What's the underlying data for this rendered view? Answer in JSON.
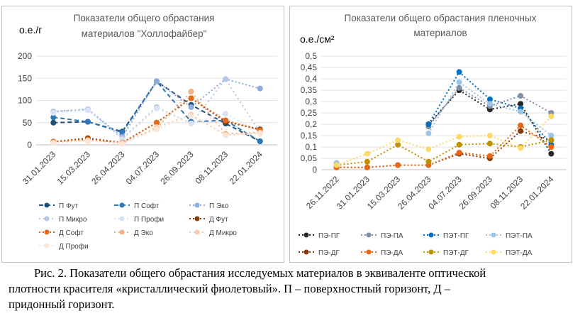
{
  "charts": [
    {
      "id": "left",
      "title": [
        "Показатели общего обрастания",
        "материалов \"Холлофайбер\""
      ],
      "ylabel": "о.е./г",
      "ylim": [
        0,
        200
      ],
      "yticks": [
        "0",
        "50",
        "100",
        "150",
        "200"
      ],
      "categories": [
        "31.01.2023",
        "15.03.2023",
        "26.04.2023",
        "04.07.2023",
        "26.09.2023",
        "08.11.2023",
        "22.01.2024"
      ],
      "series": [
        {
          "name": "П Фут",
          "color": "#1f4e79",
          "dash": "6,4",
          "values": [
            50,
            52,
            30,
            143,
            90,
            48,
            8
          ]
        },
        {
          "name": "П Софт",
          "color": "#2e75b6",
          "dash": "6,4",
          "values": [
            62,
            52,
            28,
            143,
            52,
            55,
            8
          ]
        },
        {
          "name": "П Эко",
          "color": "#8faadc",
          "dash": "2,3",
          "values": [
            75,
            80,
            18,
            143,
            85,
            148,
            127
          ]
        },
        {
          "name": "П Микро",
          "color": "#b4c7e7",
          "dash": "2,4",
          "values": [
            75,
            80,
            15,
            85,
            48,
            148,
            28
          ]
        },
        {
          "name": "П Профи",
          "color": "#dae3f3",
          "dash": "2,4",
          "values": [
            72,
            78,
            12,
            82,
            48,
            70,
            28
          ]
        },
        {
          "name": "Д Фут",
          "color": "#843c0c",
          "dash": "2,3",
          "values": [
            7,
            15,
            5,
            50,
            105,
            52,
            35
          ]
        },
        {
          "name": "Д Софт",
          "color": "#e56717",
          "dash": "2,3",
          "values": [
            7,
            12,
            5,
            50,
            105,
            55,
            33
          ]
        },
        {
          "name": "Д Эко",
          "color": "#f4b183",
          "dash": "2,4",
          "values": [
            5,
            10,
            5,
            38,
            120,
            25,
            28
          ]
        },
        {
          "name": "Д Микро",
          "color": "#f8cbad",
          "dash": "2,4",
          "values": [
            5,
            10,
            3,
            40,
            68,
            22,
            27
          ]
        },
        {
          "name": "Д Профи",
          "color": "#fbe5d6",
          "dash": "2,4",
          "values": [
            4,
            8,
            2,
            35,
            65,
            22,
            25
          ]
        }
      ]
    },
    {
      "id": "right",
      "title": [
        "Показатели общего обрастания пленочных",
        "материалов"
      ],
      "ylabel": "о.е./см²",
      "ylim": [
        0,
        0.5
      ],
      "yticks": [
        "0",
        "0,05",
        "0,1",
        "0,15",
        "0,2",
        "0,25",
        "0,3",
        "0,35",
        "0,4",
        "0,45",
        "0,5"
      ],
      "categories": [
        "26.11.2022",
        "31.01.2023",
        "15.03.2023",
        "26.04.2023",
        "04.07.2023",
        "26.09.2023",
        "08.11.2023",
        "22.01.2024"
      ],
      "series": [
        {
          "name": "ПЭ-ПГ",
          "color": "#262626",
          "dash": "2,3",
          "values": [
            null,
            null,
            null,
            0.2,
            0.35,
            0.265,
            0.29,
            0.07
          ]
        },
        {
          "name": "ПЭ-ПА",
          "color": "#7f8fa6",
          "dash": "2,3",
          "values": [
            null,
            null,
            null,
            0.19,
            0.36,
            0.28,
            0.325,
            0.25
          ]
        },
        {
          "name": "ПЭТ-ПГ",
          "color": "#0070c0",
          "dash": "2,3",
          "values": [
            null,
            null,
            null,
            0.2,
            0.43,
            0.31,
            0.27,
            0.11
          ]
        },
        {
          "name": "ПЭТ-ПА",
          "color": "#9dc3e6",
          "dash": "2,3",
          "values": [
            0.03,
            null,
            null,
            0.16,
            0.385,
            0.29,
            0.255,
            0.15
          ]
        },
        {
          "name": "ПЭ-ДГ",
          "color": "#843c0c",
          "dash": "2,3",
          "values": [
            0.01,
            0.01,
            0.02,
            0.02,
            0.07,
            0.05,
            0.17,
            0.13
          ]
        },
        {
          "name": "ПЭ-ДА",
          "color": "#e56717",
          "dash": "2,3",
          "values": [
            0.01,
            0.01,
            0.02,
            0.02,
            0.075,
            0.06,
            0.195,
            0.1
          ]
        },
        {
          "name": "ПЭТ-ДГ",
          "color": "#bf9000",
          "dash": "2,3",
          "values": [
            0.02,
            0.035,
            0.11,
            0.035,
            0.11,
            0.115,
            0.1,
            0.13
          ]
        },
        {
          "name": "ПЭТ-ДА",
          "color": "#ffd966",
          "dash": "2,3",
          "values": [
            0.02,
            0.07,
            0.13,
            0.09,
            0.145,
            0.15,
            0.095,
            0.235
          ]
        }
      ]
    }
  ],
  "caption": {
    "line1": "Рис. 2. Показатели общего обрастания исследуемых материалов в эквиваленте оптической",
    "line2": "плотности красителя «кристаллический фиолетовый». П – поверхностный горизонт, Д –",
    "line3": "придонный горизонт."
  }
}
